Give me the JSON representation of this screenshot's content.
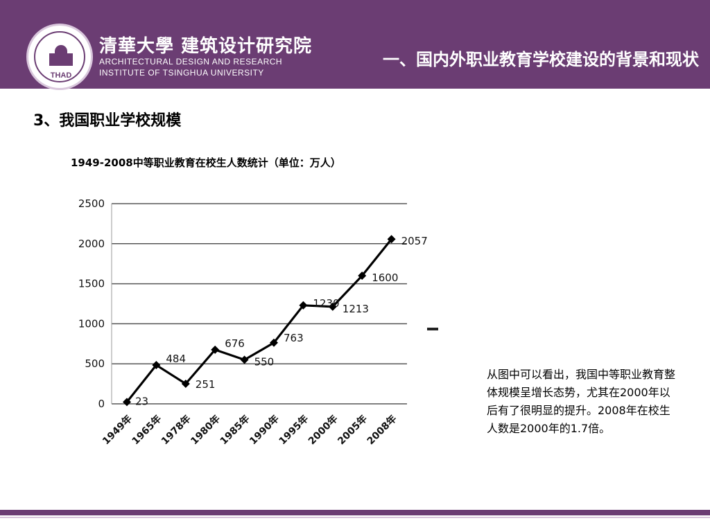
{
  "header": {
    "institute_cn": "清華大學 建筑设计研究院",
    "institute_en_line1": "ARCHITECTURAL DESIGN AND RESEARCH",
    "institute_en_line2": "INSTITUTE OF TSINGHUA UNIVERSITY",
    "logo_text": "THAD",
    "slide_title": "一、国内外职业教育学校建设的背景和现状",
    "color": "#6b3d73"
  },
  "section_title": "3、我国职业学校规模",
  "chart_title": "1949-2008中等职业教育在校生人数统计（单位：万人）",
  "chart_data": {
    "type": "line",
    "title": "1949-2008中等职业教育在校生人数统计（单位：万人）",
    "categories": [
      "1949年",
      "1965年",
      "1978年",
      "1980年",
      "1985年",
      "1990年",
      "1995年",
      "2000年",
      "2005年",
      "2008年"
    ],
    "values": [
      23,
      484,
      251,
      676,
      550,
      763,
      1230,
      1213,
      1600,
      2057
    ],
    "data_labels": [
      "23",
      "484",
      "251",
      "676",
      "550",
      "763",
      "1230",
      "1213",
      "1600",
      "2057"
    ],
    "ylim": [
      0,
      2500
    ],
    "yticks": [
      0,
      500,
      1000,
      1500,
      2000,
      2500
    ],
    "grid": true,
    "line_color": "#000000",
    "marker": "diamond"
  },
  "note": "从图中可以看出，我国中等职业教育整体规模呈增长态势，尤其在2000年以后有了很明显的提升。2008年在校生人数是2000年的1.7倍。"
}
